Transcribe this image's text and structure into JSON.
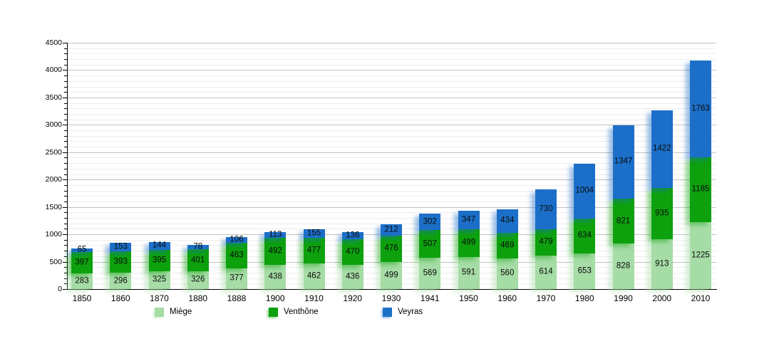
{
  "chart_data": {
    "type": "bar",
    "stacked": true,
    "title": "",
    "categories": [
      "1850",
      "1860",
      "1870",
      "1880",
      "1888",
      "1900",
      "1910",
      "1920",
      "1930",
      "1941",
      "1950",
      "1960",
      "1970",
      "1980",
      "1990",
      "2000",
      "2010"
    ],
    "series": [
      {
        "name": "Miège",
        "color": "#a6dca6",
        "values": [
          283,
          296,
          325,
          326,
          377,
          438,
          462,
          436,
          499,
          569,
          591,
          560,
          614,
          653,
          828,
          913,
          1225
        ]
      },
      {
        "name": "Venthône",
        "color": "#0da10d",
        "values": [
          397,
          393,
          395,
          401,
          463,
          492,
          477,
          470,
          476,
          507,
          499,
          469,
          479,
          634,
          821,
          935,
          1185
        ]
      },
      {
        "name": "Veyras",
        "color": "#1c6fc8",
        "values": [
          65,
          153,
          144,
          78,
          106,
          113,
          155,
          136,
          212,
          302,
          347,
          434,
          730,
          1004,
          1347,
          1422,
          1763
        ]
      }
    ],
    "ylim": [
      0,
      4500
    ],
    "y_tick_step": 500,
    "y_minor_step": 100,
    "y_tick_labels": [
      "0",
      "500",
      "1000",
      "1500",
      "2000",
      "2500",
      "3000",
      "3500",
      "4000",
      "4500"
    ],
    "grid": "horizontal, minor every 100, major every 500",
    "legend_position": "bottom",
    "value_labels": "inside-segments"
  },
  "colors": {
    "background": "#ffffff",
    "axis": "#000000",
    "grid_major": "#c2c2c2",
    "grid_minor": "#ededed",
    "label_text": "#000000"
  }
}
